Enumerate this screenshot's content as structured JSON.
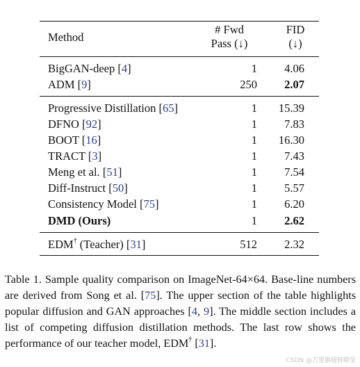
{
  "table": {
    "header": {
      "method": "Method",
      "fwd_line1": "# Fwd",
      "fwd_line2": "Pass (↓)",
      "fid_line1": "FID",
      "fid_line2": "(↓)"
    },
    "sections": [
      {
        "rows": [
          {
            "name": "BigGAN-deep",
            "cite": "4",
            "fwd": "1",
            "fid": "4.06",
            "bold_fid": false
          },
          {
            "name": "ADM",
            "cite": "9",
            "fwd": "250",
            "fid": "2.07",
            "bold_fid": true
          }
        ]
      },
      {
        "rows": [
          {
            "name": "Progressive Distillation",
            "cite": "65",
            "fwd": "1",
            "fid": "15.39",
            "bold_fid": false
          },
          {
            "name": "DFNO",
            "cite": "92",
            "fwd": "1",
            "fid": "7.83",
            "bold_fid": false
          },
          {
            "name": "BOOT",
            "cite": "16",
            "fwd": "1",
            "fid": "16.30",
            "bold_fid": false
          },
          {
            "name": "TRACT",
            "cite": "3",
            "fwd": "1",
            "fid": "7.43",
            "bold_fid": false
          },
          {
            "name": "Meng et al.",
            "cite": "51",
            "fwd": "1",
            "fid": "7.54",
            "bold_fid": false
          },
          {
            "name": "Diff-Instruct",
            "cite": "50",
            "fwd": "1",
            "fid": "5.57",
            "bold_fid": false
          },
          {
            "name": "Consistency Model",
            "cite": "75",
            "fwd": "1",
            "fid": "6.20",
            "bold_fid": false
          },
          {
            "name": "DMD (Ours)",
            "cite": "",
            "fwd": "1",
            "fid": "2.62",
            "bold_fid": true,
            "bold_name": true
          }
        ]
      },
      {
        "rows": [
          {
            "name": "EDM",
            "sup": "†",
            "suffix": " (Teacher)",
            "cite": "31",
            "fwd": "512",
            "fid": "2.32",
            "bold_fid": false
          }
        ]
      }
    ]
  },
  "caption": {
    "p1": "Table 1.  Sample quality comparison on ImageNet-64×64. Base-line numbers are derived from Song et al. [",
    "c1": "75",
    "p2": "].  The upper section of the table highlights popular diffusion and GAN approaches [",
    "c2": "4",
    "p3": ", ",
    "c3": "9",
    "p4": "]. The middle section includes a list of competing diffusion distillation methods. The last row shows the performance of our teacher model, EDM",
    "sup": "†",
    "p5": " [",
    "c4": "31",
    "p6": "]."
  },
  "watermark": "CSDN @万里鹏程转瞬至"
}
